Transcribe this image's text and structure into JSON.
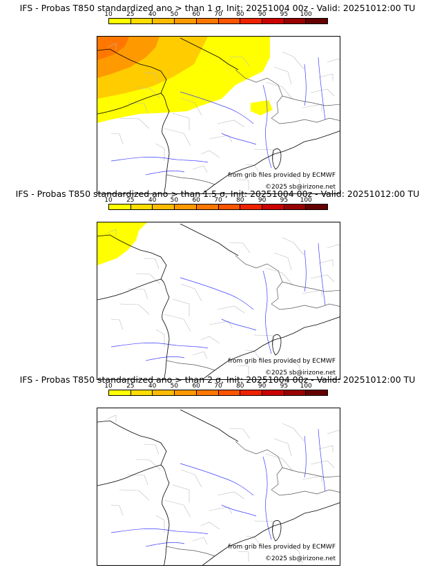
{
  "panels": [
    {
      "title": "IFS - Probas T850  standardized ano > than 1 σ, Init: 20251004 00z - Valid: 20251012:00 TU",
      "source_credit": "from grib files provided by ECMWF",
      "copyright": "©2025 sb@irizone.net",
      "shading": "strong"
    },
    {
      "title": "IFS - Probas T850  standardized ano > than 1.5 σ, Init: 20251004 00z - Valid: 20251012:00 TU",
      "source_credit": "from grib files provided by ECMWF",
      "copyright": "©2025 sb@irizone.net",
      "shading": "light"
    },
    {
      "title": "IFS - Probas T850  standardized ano > than 2 σ, Init: 20251004 00z - Valid: 20251012:00 TU",
      "source_credit": "from grib files provided by ECMWF",
      "copyright": "©2025 sb@irizone.net",
      "shading": "none"
    }
  ],
  "colorbar": {
    "ticks": [
      "10",
      "25",
      "40",
      "50",
      "60",
      "70",
      "80",
      "90",
      "95",
      "100"
    ],
    "colors": [
      "#ffff00",
      "#ffdd00",
      "#ffbb00",
      "#ff9900",
      "#ff7700",
      "#ff5500",
      "#ee2200",
      "#cc0000",
      "#990000",
      "#660000"
    ]
  }
}
